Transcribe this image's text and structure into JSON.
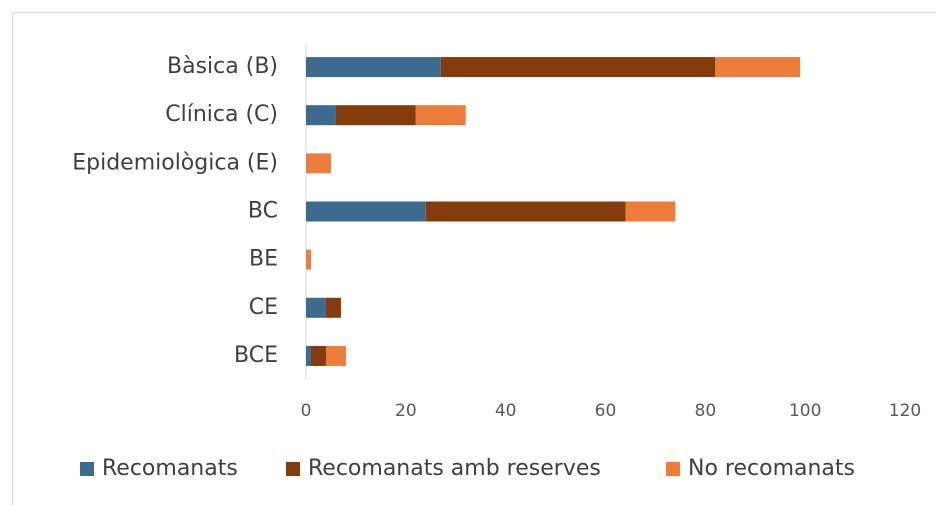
{
  "chart_data": {
    "type": "stacked_barh",
    "categories": [
      "Bàsica (B)",
      "Clínica (C)",
      "Epidemiològica (E)",
      "BC",
      "BE",
      "CE",
      "BCE"
    ],
    "series": [
      {
        "name": "Recomanats",
        "color": "#3d6b8f",
        "values": [
          27,
          6,
          0,
          24,
          0,
          4,
          1
        ]
      },
      {
        "name": "Recomanats amb reserves",
        "color": "#843c0c",
        "values": [
          55,
          16,
          0,
          40,
          0,
          3,
          3
        ]
      },
      {
        "name": "No recomanats",
        "color": "#ec7d3b",
        "values": [
          17,
          10,
          5,
          10,
          1,
          0,
          4
        ]
      }
    ],
    "xlim": [
      0,
      120
    ],
    "xticks": [
      0,
      20,
      40,
      60,
      80,
      100,
      120
    ],
    "grid": false,
    "legend": "bottom"
  }
}
